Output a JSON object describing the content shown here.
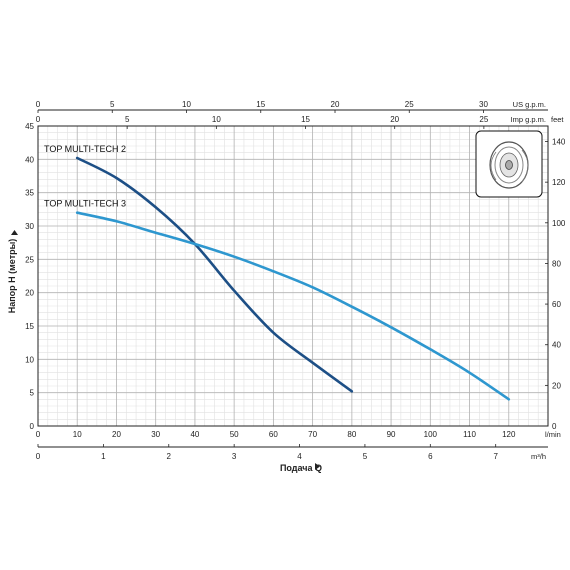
{
  "chart_data": {
    "type": "line",
    "title": "",
    "xlabel": "Подача Q",
    "ylabel": "Напор H (метры)",
    "xlim": [
      0,
      130
    ],
    "ylim": [
      0,
      45
    ],
    "x_ticks": [
      0,
      10,
      20,
      30,
      40,
      50,
      60,
      70,
      80,
      90,
      100,
      110,
      120
    ],
    "x_unit": "l/min",
    "y_ticks": [
      0,
      5,
      10,
      15,
      20,
      25,
      30,
      35,
      40,
      45
    ],
    "grid": true,
    "legend": "inline-labels",
    "series": [
      {
        "name": "TOP MULTI-TECH 2",
        "color": "#1d4f86",
        "x": [
          10,
          20,
          30,
          40,
          50,
          60,
          70,
          80
        ],
        "y": [
          40.2,
          37.2,
          32.8,
          27.3,
          20.3,
          14.0,
          9.5,
          5.2
        ]
      },
      {
        "name": "TOP MULTI-TECH 3",
        "color": "#2e97cf",
        "x": [
          10,
          20,
          30,
          40,
          50,
          60,
          70,
          80,
          90,
          100,
          110,
          120
        ],
        "y": [
          32.0,
          30.7,
          29.0,
          27.3,
          25.4,
          23.2,
          20.8,
          17.9,
          14.8,
          11.5,
          8.0,
          4.0
        ]
      }
    ],
    "secondary_axes": [
      {
        "position": "top-outer",
        "unit": "US g.p.m.",
        "factor": 0.264172,
        "ticks": [
          0,
          5,
          10,
          15,
          20,
          25,
          30
        ]
      },
      {
        "position": "top-inner",
        "unit": "Imp g.p.m.",
        "factor": 0.219969,
        "ticks": [
          0,
          5,
          10,
          15,
          20,
          25
        ]
      },
      {
        "position": "bottom",
        "unit": "m³/h",
        "factor": 0.06,
        "ticks": [
          0,
          1,
          2,
          3,
          4,
          5,
          6,
          7
        ]
      },
      {
        "position": "right",
        "unit": "feet",
        "factor": 3.28084,
        "ticks": [
          0,
          20,
          40,
          60,
          80,
          100,
          120,
          140
        ]
      }
    ]
  },
  "inset": {
    "icon": "pump-impeller-icon"
  }
}
